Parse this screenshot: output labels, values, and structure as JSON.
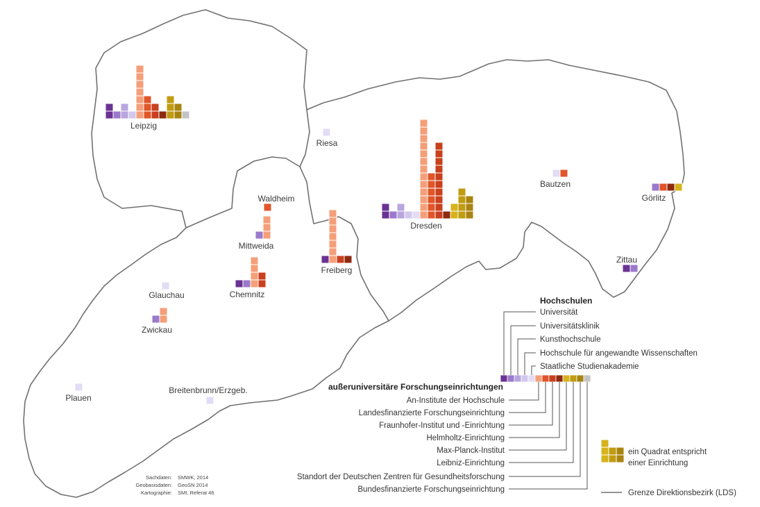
{
  "colors": {
    "universitaet": "#6a3393",
    "universitaetsklinik": "#9b79cc",
    "kunsthochschule": "#b9a6de",
    "hochschule_aw": "#d2c8ee",
    "studienakademie": "#e3dcf6",
    "an_institute": "#f49f7a",
    "landesfinanziert": "#e0552a",
    "fraunhofer": "#c9401e",
    "helmholtz": "#8e2a10",
    "max_planck": "#d6b31c",
    "leibniz": "#c09c12",
    "dzg": "#a88410",
    "bundesfinanziert": "#c4c4c4"
  },
  "cities": [
    {
      "name": "Leipzig",
      "counts": {
        "universitaet": 2,
        "universitaetsklinik": 1,
        "kunsthochschule": 2,
        "hochschule_aw": 1,
        "an_institute": 7,
        "landesfinanziert": 3,
        "fraunhofer": 2,
        "helmholtz": 1,
        "leibniz": 3,
        "dzg": 2,
        "bundesfinanziert": 1
      }
    },
    {
      "name": "Riesa",
      "counts": {
        "studienakademie": 1
      }
    },
    {
      "name": "Dresden",
      "counts": {
        "universitaet": 2,
        "universitaetsklinik": 1,
        "kunsthochschule": 2,
        "hochschule_aw": 1,
        "studienakademie": 1,
        "an_institute": 13,
        "landesfinanziert": 6,
        "fraunhofer": 10,
        "helmholtz": 1,
        "max_planck": 2,
        "leibniz": 4,
        "dzg": 3
      }
    },
    {
      "name": "Bautzen",
      "counts": {
        "studienakademie": 1,
        "landesfinanziert": 1
      }
    },
    {
      "name": "Görlitz",
      "counts": {
        "universitaetsklinik": 1,
        "landesfinanziert": 1,
        "helmholtz": 1,
        "max_planck": 1
      }
    },
    {
      "name": "Zittau",
      "counts": {
        "universitaet": 1,
        "universitaetsklinik": 1
      }
    },
    {
      "name": "Waldheim",
      "counts": {
        "landesfinanziert": 1
      }
    },
    {
      "name": "Mittweida",
      "counts": {
        "universitaetsklinik": 1,
        "an_institute": 3
      }
    },
    {
      "name": "Freiberg",
      "counts": {
        "universitaet": 1,
        "an_institute": 7,
        "fraunhofer": 1,
        "helmholtz": 1
      }
    },
    {
      "name": "Chemnitz",
      "counts": {
        "universitaet": 1,
        "universitaetsklinik": 1,
        "an_institute": 4,
        "fraunhofer": 2
      }
    },
    {
      "name": "Glauchau",
      "counts": {
        "studienakademie": 1
      }
    },
    {
      "name": "Zwickau",
      "counts": {
        "universitaetsklinik": 1,
        "an_institute": 2
      }
    },
    {
      "name": "Plauen",
      "counts": {
        "studienakademie": 1
      }
    },
    {
      "name": "Breitenbrunn/Erzgeb.",
      "counts": {
        "studienakademie": 1
      }
    }
  ],
  "legend": {
    "hochschulen_title": "Hochschulen",
    "hochschulen": [
      {
        "key": "universitaet",
        "label": "Universität"
      },
      {
        "key": "universitaetsklinik",
        "label": "Universitätsklinik"
      },
      {
        "key": "kunsthochschule",
        "label": "Kunsthochschule"
      },
      {
        "key": "hochschule_aw",
        "label": "Hochschule für angewandte Wissenschaften"
      },
      {
        "key": "studienakademie",
        "label": "Staatliche Studienakademie"
      }
    ],
    "forschung_title": "außeruniversitäre Forschungseinrichtungen",
    "forschung": [
      {
        "key": "an_institute",
        "label": "An-Institute der Hochschule"
      },
      {
        "key": "landesfinanziert",
        "label": "Landesfinanzierte Forschungseinrichtung"
      },
      {
        "key": "fraunhofer",
        "label": "Fraunhofer-Institut und -Einrichtung"
      },
      {
        "key": "helmholtz",
        "label": "Helmholtz-Einrichtung"
      },
      {
        "key": "max_planck",
        "label": "Max-Planck-Institut"
      },
      {
        "key": "leibniz",
        "label": "Leibniz-Einrichtung"
      },
      {
        "key": "dzg",
        "label": "Standort der Deutschen Zentren für Gesundheitsforschung"
      },
      {
        "key": "bundesfinanziert",
        "label": "Bundesfinanzierte Forschungseinrichtung"
      }
    ],
    "quadrat_line1": "ein Quadrat entspricht",
    "quadrat_line2": "einer Einrichtung",
    "grenze": "Grenze Direktionsbezirk (LDS)"
  },
  "sources": [
    {
      "label": "Sachdaten:",
      "value": "SMWK, 2014"
    },
    {
      "label": "Geobasisdaten:",
      "value": "GeoSN 2014"
    },
    {
      "label": "Kartographie:",
      "value": "SMI, Referat 46"
    }
  ]
}
